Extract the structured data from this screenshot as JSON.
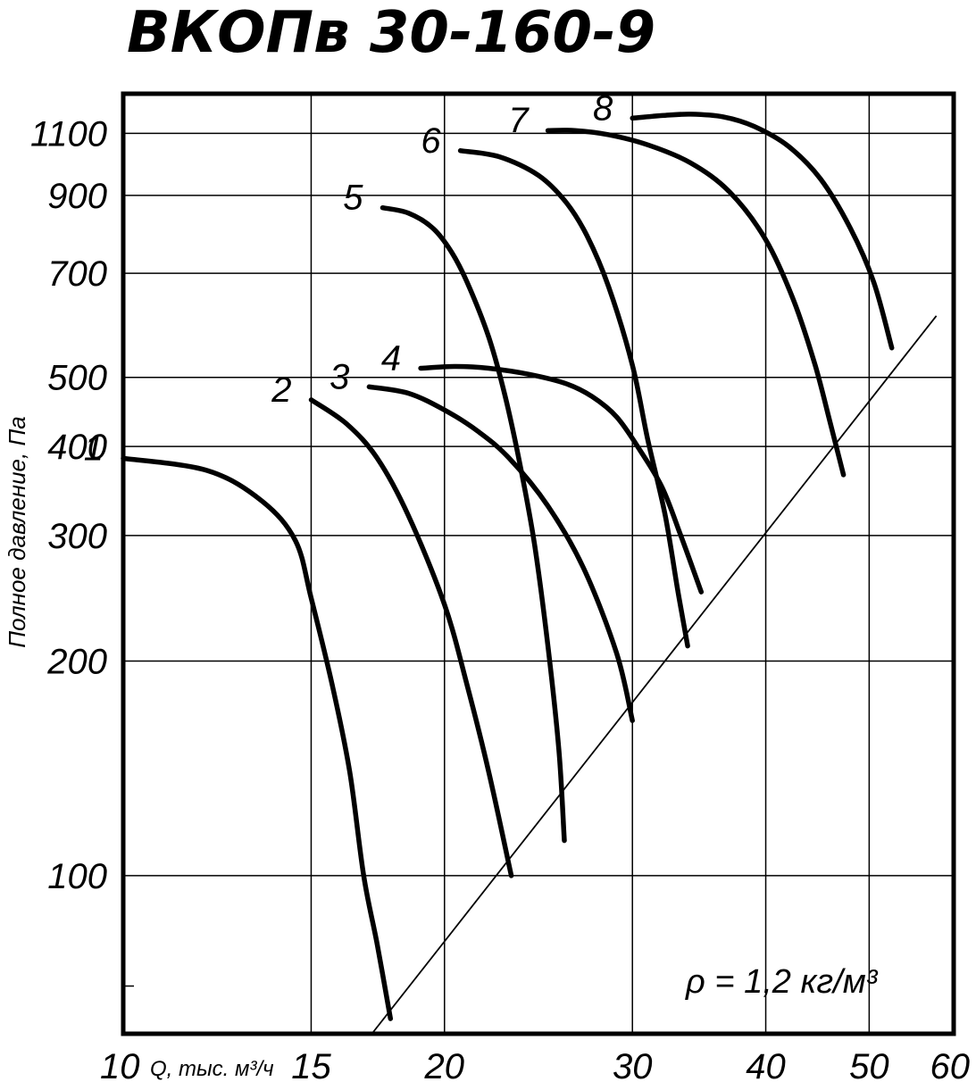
{
  "chart_data": {
    "type": "line",
    "title": "ВКОПв 30-160-9",
    "ylabel": "Полное давление, Па",
    "xlabel": "Q, тыс. м³/ч",
    "x_tick_first": "10",
    "x_ticks": [
      "15",
      "20",
      "30",
      "40",
      "50",
      "60"
    ],
    "y_ticks": [
      "100",
      "200",
      "300",
      "400",
      "500",
      "700",
      "900",
      "1100"
    ],
    "x_scale": "log",
    "y_scale": "log",
    "xlim": [
      10,
      60
    ],
    "ylim": [
      60,
      1250
    ],
    "grid": true,
    "density_note": "ρ = 1,2 кг/м³",
    "series": [
      {
        "name": "1",
        "x": [
          10,
          12,
          13.5,
          14.5,
          15,
          15.7,
          16.3,
          16.8,
          17.3,
          17.8
        ],
        "y": [
          385,
          370,
          335,
          295,
          245,
          185,
          140,
          100,
          80,
          63
        ]
      },
      {
        "name": "2",
        "x": [
          15,
          16.2,
          17.3,
          18.5,
          20,
          21,
          22,
          23.1
        ],
        "y": [
          465,
          430,
          385,
          320,
          240,
          185,
          140,
          100
        ]
      },
      {
        "name": "3",
        "x": [
          17,
          18.5,
          20,
          21.5,
          23,
          25,
          27,
          29,
          30
        ],
        "y": [
          485,
          475,
          450,
          420,
          385,
          330,
          270,
          205,
          165
        ]
      },
      {
        "name": "4",
        "x": [
          19,
          20.5,
          22,
          24,
          26,
          27.5,
          29,
          30.5,
          32,
          33.3,
          34.8
        ],
        "y": [
          515,
          518,
          515,
          505,
          490,
          470,
          440,
          395,
          350,
          300,
          250
        ]
      },
      {
        "name": "5",
        "x": [
          17.5,
          18.5,
          19.5,
          20.3,
          21,
          22,
          22.8,
          23.6,
          24.3,
          25,
          25.6,
          25.9
        ],
        "y": [
          865,
          850,
          810,
          750,
          680,
          570,
          470,
          370,
          290,
          210,
          150,
          112
        ]
      },
      {
        "name": "6",
        "x": [
          20.7,
          22.5,
          24.5,
          26,
          27.2,
          28.5,
          30,
          31,
          32.2,
          33.1,
          33.8
        ],
        "y": [
          1040,
          1020,
          960,
          880,
          790,
          670,
          520,
          410,
          320,
          250,
          210
        ]
      },
      {
        "name": "7",
        "x": [
          25,
          26.5,
          28.5,
          31,
          34,
          37,
          40,
          42.5,
          44.5,
          46,
          47.3
        ],
        "y": [
          1110,
          1110,
          1095,
          1060,
          1000,
          910,
          780,
          640,
          520,
          430,
          365
        ]
      },
      {
        "name": "8",
        "x": [
          30,
          32,
          34,
          36.5,
          39,
          42,
          45,
          48,
          50.5,
          52.5
        ],
        "y": [
          1155,
          1165,
          1170,
          1160,
          1125,
          1055,
          950,
          810,
          680,
          550
        ]
      }
    ],
    "system_line": {
      "x": [
        17.1,
        57.8
      ],
      "y": [
        60,
        610
      ]
    }
  }
}
